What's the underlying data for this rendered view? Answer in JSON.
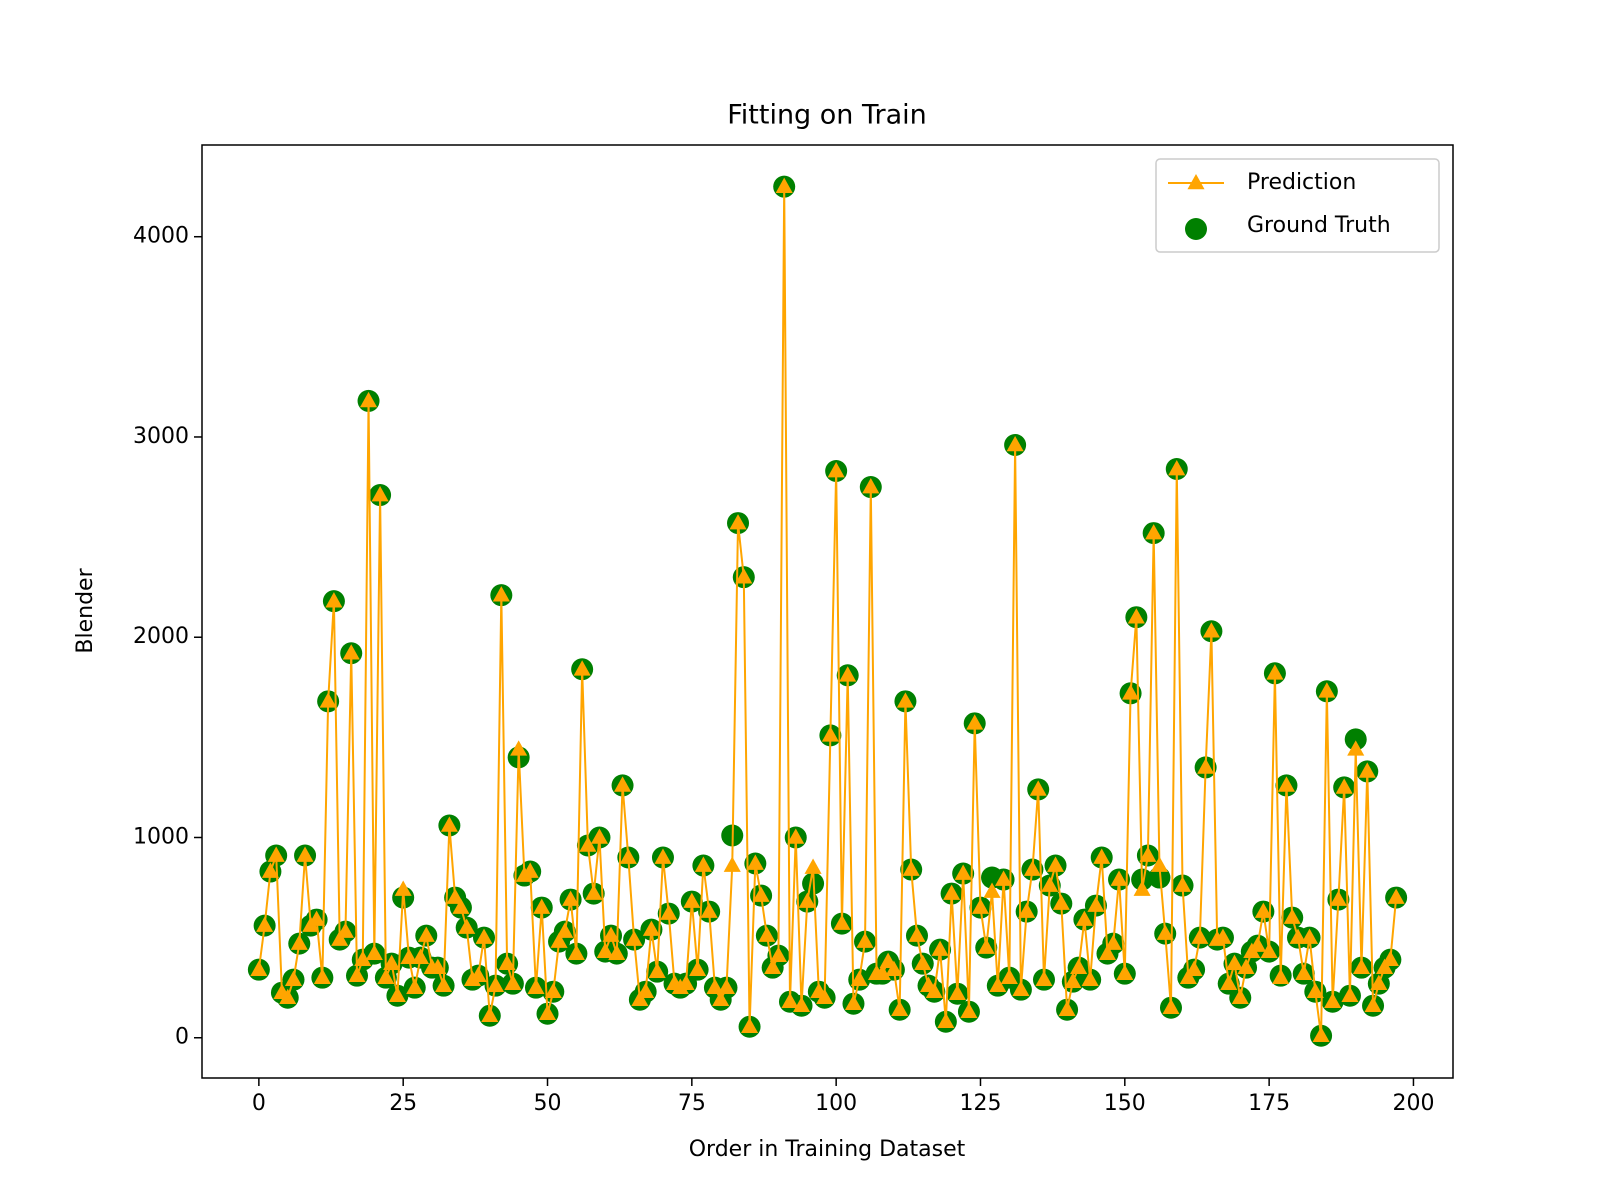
{
  "chart_data": {
    "type": "line",
    "title": "Fitting on Train",
    "xlabel": "Order in Training Dataset",
    "ylabel": "Blender",
    "xlim": [
      -9.85,
      206.85
    ],
    "ylim": [
      -201,
      4458
    ],
    "xticks": [
      0,
      25,
      50,
      75,
      100,
      125,
      150,
      175,
      200
    ],
    "yticks": [
      0,
      1000,
      2000,
      3000,
      4000
    ],
    "legend": "upper right",
    "x": [
      0,
      1,
      2,
      3,
      4,
      5,
      6,
      7,
      8,
      9,
      10,
      11,
      12,
      13,
      14,
      15,
      16,
      17,
      18,
      19,
      20,
      21,
      22,
      23,
      24,
      25,
      26,
      27,
      28,
      29,
      30,
      31,
      32,
      33,
      34,
      35,
      36,
      37,
      38,
      39,
      40,
      41,
      42,
      43,
      44,
      45,
      46,
      47,
      48,
      49,
      50,
      51,
      52,
      53,
      54,
      55,
      56,
      57,
      58,
      59,
      60,
      61,
      62,
      63,
      64,
      65,
      66,
      67,
      68,
      69,
      70,
      71,
      72,
      73,
      74,
      75,
      76,
      77,
      78,
      79,
      80,
      81,
      82,
      83,
      84,
      85,
      86,
      87,
      88,
      89,
      90,
      91,
      92,
      93,
      94,
      95,
      96,
      97,
      98,
      99,
      100,
      101,
      102,
      103,
      104,
      105,
      106,
      107,
      108,
      109,
      110,
      111,
      112,
      113,
      114,
      115,
      116,
      117,
      118,
      119,
      120,
      121,
      122,
      123,
      124,
      125,
      126,
      127,
      128,
      129,
      130,
      131,
      132,
      133,
      134,
      135,
      136,
      137,
      138,
      139,
      140,
      141,
      142,
      143,
      144,
      145,
      146,
      147,
      148,
      149,
      150,
      151,
      152,
      153,
      154,
      155,
      156,
      157,
      158,
      159,
      160,
      161,
      162,
      163,
      164,
      165,
      166,
      167,
      168,
      169,
      170,
      171,
      172,
      173,
      174,
      175,
      176,
      177,
      178,
      179,
      180,
      181,
      182,
      183,
      184,
      185,
      186,
      187,
      188,
      189,
      190,
      191,
      192,
      193,
      194,
      195,
      196,
      197
    ],
    "series": [
      {
        "name": "Prediction",
        "type": "line",
        "marker": "triangle",
        "color": "#ffa500",
        "values": [
          340,
          560,
          830,
          910,
          225,
          200,
          290,
          470,
          910,
          560,
          590,
          300,
          1680,
          2180,
          490,
          530,
          1920,
          310,
          390,
          3180,
          420,
          2710,
          300,
          370,
          210,
          740,
          400,
          250,
          400,
          510,
          350,
          350,
          260,
          1060,
          700,
          650,
          550,
          290,
          310,
          500,
          110,
          260,
          2210,
          370,
          270,
          1440,
          810,
          830,
          250,
          650,
          120,
          230,
          480,
          530,
          690,
          420,
          1840,
          960,
          720,
          1000,
          430,
          510,
          420,
          1260,
          900,
          490,
          190,
          230,
          540,
          330,
          900,
          620,
          270,
          250,
          270,
          680,
          340,
          860,
          630,
          250,
          190,
          250,
          860,
          2570,
          2300,
          55,
          870,
          710,
          510,
          350,
          410,
          4250,
          180,
          1000,
          160,
          680,
          850,
          230,
          200,
          1510,
          2830,
          570,
          1810,
          170,
          290,
          480,
          2750,
          320,
          320,
          380,
          340,
          140,
          1680,
          840,
          510,
          370,
          260,
          230,
          440,
          80,
          720,
          220,
          820,
          130,
          1570,
          650,
          450,
          730,
          260,
          790,
          300,
          2960,
          240,
          630,
          840,
          1240,
          290,
          760,
          860,
          670,
          140,
          280,
          350,
          590,
          290,
          660,
          900,
          420,
          470,
          790,
          320,
          1720,
          2100,
          740,
          910,
          2520,
          860,
          520,
          150,
          2840,
          760,
          300,
          340,
          500,
          1350,
          2030,
          490,
          500,
          270,
          370,
          200,
          350,
          430,
          460,
          630,
          430,
          1820,
          300,
          1260,
          600,
          500,
          320,
          500,
          230,
          10,
          1730,
          180,
          690,
          1250,
          210,
          1440,
          350,
          1330,
          160,
          270,
          350,
          390,
          700
        ]
      },
      {
        "name": "Ground Truth",
        "type": "scatter",
        "marker": "circle",
        "color": "#008000",
        "values": [
          340,
          560,
          830,
          910,
          225,
          200,
          290,
          470,
          910,
          560,
          590,
          300,
          1680,
          2180,
          490,
          530,
          1920,
          310,
          390,
          3180,
          420,
          2710,
          300,
          370,
          210,
          700,
          400,
          250,
          400,
          510,
          350,
          350,
          260,
          1060,
          700,
          650,
          550,
          290,
          310,
          500,
          110,
          260,
          2210,
          370,
          270,
          1400,
          810,
          830,
          250,
          650,
          120,
          230,
          480,
          530,
          690,
          420,
          1840,
          960,
          720,
          1000,
          430,
          510,
          420,
          1260,
          900,
          490,
          190,
          230,
          540,
          330,
          900,
          620,
          270,
          250,
          270,
          680,
          340,
          860,
          630,
          250,
          190,
          250,
          1010,
          2570,
          2300,
          55,
          870,
          710,
          510,
          350,
          410,
          4250,
          180,
          1000,
          160,
          680,
          770,
          230,
          200,
          1510,
          2830,
          570,
          1810,
          170,
          290,
          480,
          2750,
          320,
          320,
          380,
          340,
          140,
          1680,
          840,
          510,
          370,
          260,
          230,
          440,
          80,
          720,
          220,
          820,
          130,
          1570,
          650,
          450,
          800,
          260,
          790,
          300,
          2960,
          240,
          630,
          840,
          1240,
          290,
          760,
          860,
          670,
          140,
          280,
          350,
          590,
          290,
          660,
          900,
          420,
          470,
          790,
          320,
          1720,
          2100,
          790,
          910,
          2520,
          800,
          520,
          150,
          2840,
          760,
          300,
          340,
          500,
          1350,
          2030,
          490,
          500,
          270,
          370,
          200,
          350,
          430,
          460,
          630,
          430,
          1820,
          310,
          1260,
          600,
          500,
          320,
          500,
          230,
          10,
          1730,
          180,
          690,
          1250,
          210,
          1490,
          350,
          1330,
          160,
          270,
          350,
          390,
          700
        ]
      }
    ]
  }
}
